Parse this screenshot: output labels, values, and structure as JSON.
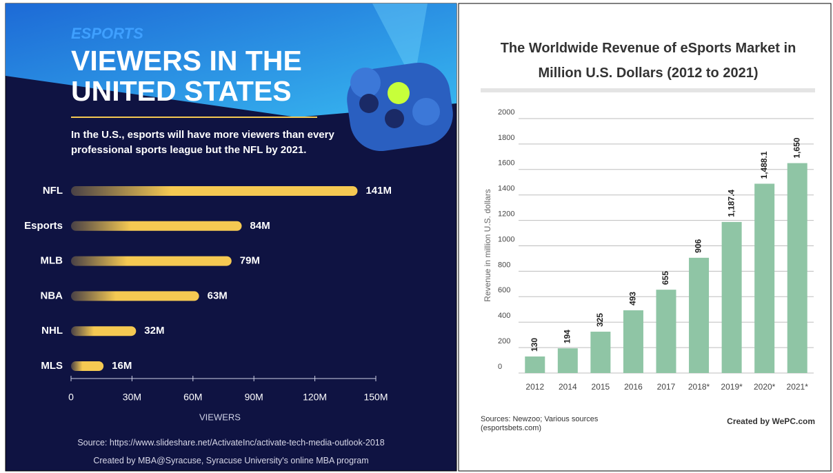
{
  "chart_data": [
    {
      "type": "bar",
      "orientation": "horizontal",
      "kicker": "ESPORTS",
      "title": "VIEWERS IN THE UNITED STATES",
      "subtitle": "In the U.S., esports will have more viewers than every professional sports league but the NFL by 2021.",
      "categories": [
        "NFL",
        "Esports",
        "MLB",
        "NBA",
        "NHL",
        "MLS"
      ],
      "values": [
        141,
        84,
        79,
        63,
        32,
        16
      ],
      "value_labels": [
        "141M",
        "84M",
        "79M",
        "63M",
        "32M",
        "16M"
      ],
      "color": "#f5c952",
      "xlim": [
        0,
        150
      ],
      "xticks": [
        0,
        {
          "value": 30,
          "label": "30M"
        },
        {
          "value": 60,
          "label": "60M"
        },
        {
          "value": 90,
          "label": "90M"
        },
        {
          "value": 120,
          "label": "120M"
        },
        {
          "value": 150,
          "label": "150M"
        }
      ],
      "xlabel": "VIEWERS",
      "grid": false,
      "source": "Source: https://www.slideshare.net/ActivateInc/activate-tech-media-outlook-2018",
      "credit": "Created by MBA@Syracuse, Syracuse University's online MBA program"
    },
    {
      "type": "bar",
      "title": "The Worldwide Revenue of eSports Market in Million U.S. Dollars (2012 to 2021)",
      "categories": [
        "2012",
        "2014",
        "2015",
        "2016",
        "2017",
        "2018*",
        "2019*",
        "2020*",
        "2021*"
      ],
      "values": [
        130,
        194,
        325,
        493,
        655,
        906,
        1187.4,
        1488.1,
        1650
      ],
      "value_labels": [
        "130",
        "194",
        "325",
        "493",
        "655",
        "906",
        "1,187.4",
        "1,488.1",
        "1,650"
      ],
      "color": "#8fc5a5",
      "ylim": [
        0,
        2000
      ],
      "yticks": [
        0,
        200,
        400,
        600,
        800,
        1000,
        1200,
        1400,
        1600,
        1800,
        2000
      ],
      "ylabel": "Revenue in million U.S. dollars",
      "grid": true,
      "source": "Sources: Newzoo; Various sources (esportsbets.com)",
      "credit": "Created by WePC.com"
    }
  ]
}
